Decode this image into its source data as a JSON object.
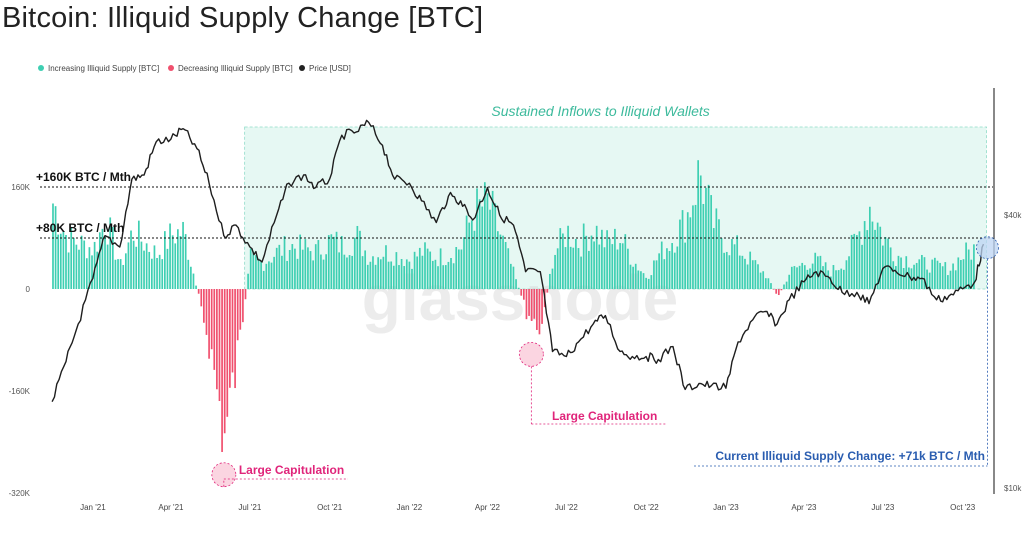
{
  "title": "Bitcoin: Illiquid Supply Change [BTC]",
  "chart_data": {
    "type": "bar",
    "title": "Bitcoin: Illiquid Supply Change [BTC]",
    "legend": {
      "placement": "top-left",
      "items": [
        {
          "label": "Increasing Illiquid Supply [BTC]",
          "color": "#3ecfb2"
        },
        {
          "label": "Decreasing Illiquid Supply [BTC]",
          "color": "#f0506e"
        },
        {
          "label": "Price [USD]",
          "color": "#222222"
        }
      ]
    },
    "y_left": {
      "ticks": [
        {
          "value": 160000,
          "label": "160K"
        },
        {
          "value": 0,
          "label": "0"
        },
        {
          "value": -160000,
          "label": "-160K"
        },
        {
          "value": -320000,
          "label": "-320K"
        }
      ],
      "range": [
        -320000,
        280000
      ]
    },
    "y_right": {
      "scale": "log",
      "ticks": [
        {
          "value": 40000,
          "label": "$40k"
        },
        {
          "value": 10000,
          "label": "$10k"
        }
      ],
      "range": [
        10000,
        90000
      ]
    },
    "x_axis": {
      "ticks": [
        {
          "date": "2021-01-01",
          "label": "Jan '21"
        },
        {
          "date": "2021-04-01",
          "label": "Apr '21"
        },
        {
          "date": "2021-07-01",
          "label": "Jul '21"
        },
        {
          "date": "2021-10-01",
          "label": "Oct '21"
        },
        {
          "date": "2022-01-01",
          "label": "Jan '22"
        },
        {
          "date": "2022-04-01",
          "label": "Apr '22"
        },
        {
          "date": "2022-07-01",
          "label": "Jul '22"
        },
        {
          "date": "2022-10-01",
          "label": "Oct '22"
        },
        {
          "date": "2023-01-01",
          "label": "Jan '23"
        },
        {
          "date": "2023-04-01",
          "label": "Apr '23"
        },
        {
          "date": "2023-07-01",
          "label": "Jul '23"
        },
        {
          "date": "2023-10-01",
          "label": "Oct '23"
        }
      ]
    },
    "reference_lines": [
      {
        "value": 160000,
        "label": "+160K BTC / Mth"
      },
      {
        "value": 80000,
        "label": "+80K BTC / Mth"
      }
    ],
    "supply_change": [
      {
        "date": "2020-11-15",
        "btc": 150000
      },
      {
        "date": "2020-12-01",
        "btc": 90000
      },
      {
        "date": "2020-12-15",
        "btc": 80000
      },
      {
        "date": "2021-01-01",
        "btc": 70000
      },
      {
        "date": "2021-01-15",
        "btc": 120000
      },
      {
        "date": "2021-02-01",
        "btc": 40000
      },
      {
        "date": "2021-02-15",
        "btc": 100000
      },
      {
        "date": "2021-03-01",
        "btc": 80000
      },
      {
        "date": "2021-03-15",
        "btc": 60000
      },
      {
        "date": "2021-04-01",
        "btc": 95000
      },
      {
        "date": "2021-04-15",
        "btc": 100000
      },
      {
        "date": "2021-05-01",
        "btc": -5000
      },
      {
        "date": "2021-05-15",
        "btc": -100000
      },
      {
        "date": "2021-06-01",
        "btc": -260000
      },
      {
        "date": "2021-06-15",
        "btc": -130000
      },
      {
        "date": "2021-07-01",
        "btc": 55000
      },
      {
        "date": "2021-07-15",
        "btc": 45000
      },
      {
        "date": "2021-08-01",
        "btc": 65000
      },
      {
        "date": "2021-08-15",
        "btc": 75000
      },
      {
        "date": "2021-09-01",
        "btc": 70000
      },
      {
        "date": "2021-09-15",
        "btc": 65000
      },
      {
        "date": "2021-10-01",
        "btc": 85000
      },
      {
        "date": "2021-10-15",
        "btc": 75000
      },
      {
        "date": "2021-11-01",
        "btc": 90000
      },
      {
        "date": "2021-11-15",
        "btc": 55000
      },
      {
        "date": "2021-12-01",
        "btc": 65000
      },
      {
        "date": "2021-12-15",
        "btc": 60000
      },
      {
        "date": "2022-01-01",
        "btc": 50000
      },
      {
        "date": "2022-01-15",
        "btc": 65000
      },
      {
        "date": "2022-02-01",
        "btc": 55000
      },
      {
        "date": "2022-02-15",
        "btc": 60000
      },
      {
        "date": "2022-03-01",
        "btc": 75000
      },
      {
        "date": "2022-03-15",
        "btc": 135000
      },
      {
        "date": "2022-04-01",
        "btc": 150000
      },
      {
        "date": "2022-04-15",
        "btc": 95000
      },
      {
        "date": "2022-05-01",
        "btc": 25000
      },
      {
        "date": "2022-05-15",
        "btc": -40000
      },
      {
        "date": "2022-06-01",
        "btc": -70000
      },
      {
        "date": "2022-06-15",
        "btc": 60000
      },
      {
        "date": "2022-07-01",
        "btc": 100000
      },
      {
        "date": "2022-07-15",
        "btc": 80000
      },
      {
        "date": "2022-08-01",
        "btc": 105000
      },
      {
        "date": "2022-08-15",
        "btc": 80000
      },
      {
        "date": "2022-09-01",
        "btc": 90000
      },
      {
        "date": "2022-09-15",
        "btc": 50000
      },
      {
        "date": "2022-10-01",
        "btc": 20000
      },
      {
        "date": "2022-10-15",
        "btc": 60000
      },
      {
        "date": "2022-11-01",
        "btc": 90000
      },
      {
        "date": "2022-11-15",
        "btc": 120000
      },
      {
        "date": "2022-12-01",
        "btc": 205000
      },
      {
        "date": "2022-12-15",
        "btc": 120000
      },
      {
        "date": "2023-01-01",
        "btc": 80000
      },
      {
        "date": "2023-01-15",
        "btc": 70000
      },
      {
        "date": "2023-02-01",
        "btc": 45000
      },
      {
        "date": "2023-02-15",
        "btc": 25000
      },
      {
        "date": "2023-03-01",
        "btc": -15000
      },
      {
        "date": "2023-03-15",
        "btc": 30000
      },
      {
        "date": "2023-04-01",
        "btc": 45000
      },
      {
        "date": "2023-04-15",
        "btc": 50000
      },
      {
        "date": "2023-05-01",
        "btc": 30000
      },
      {
        "date": "2023-05-15",
        "btc": 45000
      },
      {
        "date": "2023-06-01",
        "btc": 90000
      },
      {
        "date": "2023-06-15",
        "btc": 145000
      },
      {
        "date": "2023-07-01",
        "btc": 90000
      },
      {
        "date": "2023-07-15",
        "btc": 60000
      },
      {
        "date": "2023-08-01",
        "btc": 50000
      },
      {
        "date": "2023-08-15",
        "btc": 45000
      },
      {
        "date": "2023-09-01",
        "btc": 40000
      },
      {
        "date": "2023-09-15",
        "btc": 35000
      },
      {
        "date": "2023-10-01",
        "btc": 60000
      },
      {
        "date": "2023-10-15",
        "btc": 71000
      }
    ],
    "price_usd": [
      {
        "date": "2020-11-15",
        "usd": 15500
      },
      {
        "date": "2020-12-01",
        "usd": 19000
      },
      {
        "date": "2020-12-15",
        "usd": 23000
      },
      {
        "date": "2021-01-01",
        "usd": 29000
      },
      {
        "date": "2021-01-15",
        "usd": 36000
      },
      {
        "date": "2021-02-01",
        "usd": 34000
      },
      {
        "date": "2021-02-15",
        "usd": 48000
      },
      {
        "date": "2021-03-01",
        "usd": 49000
      },
      {
        "date": "2021-03-15",
        "usd": 58000
      },
      {
        "date": "2021-04-01",
        "usd": 58800
      },
      {
        "date": "2021-04-15",
        "usd": 62000
      },
      {
        "date": "2021-05-01",
        "usd": 56000
      },
      {
        "date": "2021-05-15",
        "usd": 47000
      },
      {
        "date": "2021-06-01",
        "usd": 36000
      },
      {
        "date": "2021-06-15",
        "usd": 38000
      },
      {
        "date": "2021-07-01",
        "usd": 34000
      },
      {
        "date": "2021-07-15",
        "usd": 31500
      },
      {
        "date": "2021-08-01",
        "usd": 40000
      },
      {
        "date": "2021-08-15",
        "usd": 47000
      },
      {
        "date": "2021-09-01",
        "usd": 49000
      },
      {
        "date": "2021-09-15",
        "usd": 46000
      },
      {
        "date": "2021-10-01",
        "usd": 48000
      },
      {
        "date": "2021-10-15",
        "usd": 60000
      },
      {
        "date": "2021-11-01",
        "usd": 61000
      },
      {
        "date": "2021-11-15",
        "usd": 64000
      },
      {
        "date": "2021-12-01",
        "usd": 57000
      },
      {
        "date": "2021-12-15",
        "usd": 48000
      },
      {
        "date": "2022-01-01",
        "usd": 47000
      },
      {
        "date": "2022-01-15",
        "usd": 43000
      },
      {
        "date": "2022-02-01",
        "usd": 38500
      },
      {
        "date": "2022-02-15",
        "usd": 44000
      },
      {
        "date": "2022-03-01",
        "usd": 43000
      },
      {
        "date": "2022-03-15",
        "usd": 39000
      },
      {
        "date": "2022-04-01",
        "usd": 46000
      },
      {
        "date": "2022-04-15",
        "usd": 40000
      },
      {
        "date": "2022-05-01",
        "usd": 38000
      },
      {
        "date": "2022-05-15",
        "usd": 30000
      },
      {
        "date": "2022-06-01",
        "usd": 30000
      },
      {
        "date": "2022-06-15",
        "usd": 20000
      },
      {
        "date": "2022-07-01",
        "usd": 19500
      },
      {
        "date": "2022-07-15",
        "usd": 21000
      },
      {
        "date": "2022-08-01",
        "usd": 23000
      },
      {
        "date": "2022-08-15",
        "usd": 24000
      },
      {
        "date": "2022-09-01",
        "usd": 20000
      },
      {
        "date": "2022-09-15",
        "usd": 19500
      },
      {
        "date": "2022-10-01",
        "usd": 19500
      },
      {
        "date": "2022-10-15",
        "usd": 19200
      },
      {
        "date": "2022-11-01",
        "usd": 20500
      },
      {
        "date": "2022-11-15",
        "usd": 16500
      },
      {
        "date": "2022-12-01",
        "usd": 17000
      },
      {
        "date": "2022-12-15",
        "usd": 16800
      },
      {
        "date": "2023-01-01",
        "usd": 16600
      },
      {
        "date": "2023-01-15",
        "usd": 21000
      },
      {
        "date": "2023-02-01",
        "usd": 23500
      },
      {
        "date": "2023-02-15",
        "usd": 24500
      },
      {
        "date": "2023-03-01",
        "usd": 23000
      },
      {
        "date": "2023-03-15",
        "usd": 26000
      },
      {
        "date": "2023-04-01",
        "usd": 28500
      },
      {
        "date": "2023-04-15",
        "usd": 30000
      },
      {
        "date": "2023-05-01",
        "usd": 29000
      },
      {
        "date": "2023-05-15",
        "usd": 27000
      },
      {
        "date": "2023-06-01",
        "usd": 27000
      },
      {
        "date": "2023-06-15",
        "usd": 25500
      },
      {
        "date": "2023-07-01",
        "usd": 30500
      },
      {
        "date": "2023-07-15",
        "usd": 30200
      },
      {
        "date": "2023-08-01",
        "usd": 29200
      },
      {
        "date": "2023-08-15",
        "usd": 29000
      },
      {
        "date": "2023-09-01",
        "usd": 26000
      },
      {
        "date": "2023-09-15",
        "usd": 26500
      },
      {
        "date": "2023-10-01",
        "usd": 27500
      },
      {
        "date": "2023-10-15",
        "usd": 28500
      },
      {
        "date": "2023-10-25",
        "usd": 34500
      }
    ],
    "shaded_region": {
      "start": "2021-06-25",
      "end": "2023-11-01",
      "label": "Sustained Inflows to Illiquid Wallets"
    },
    "annotations": [
      {
        "label": "Large Capitulation",
        "date": "2021-06-01",
        "btc": -260000,
        "color": "#e0247a"
      },
      {
        "label": "Large Capitulation",
        "date": "2022-06-01",
        "btc": -90000,
        "color": "#e0247a"
      },
      {
        "label": "Current Illiquid Supply Change: +71k BTC / Mth",
        "date": "2023-10-25",
        "btc": 71000,
        "color": "#2a5db0"
      }
    ],
    "watermark": "glassnode"
  }
}
